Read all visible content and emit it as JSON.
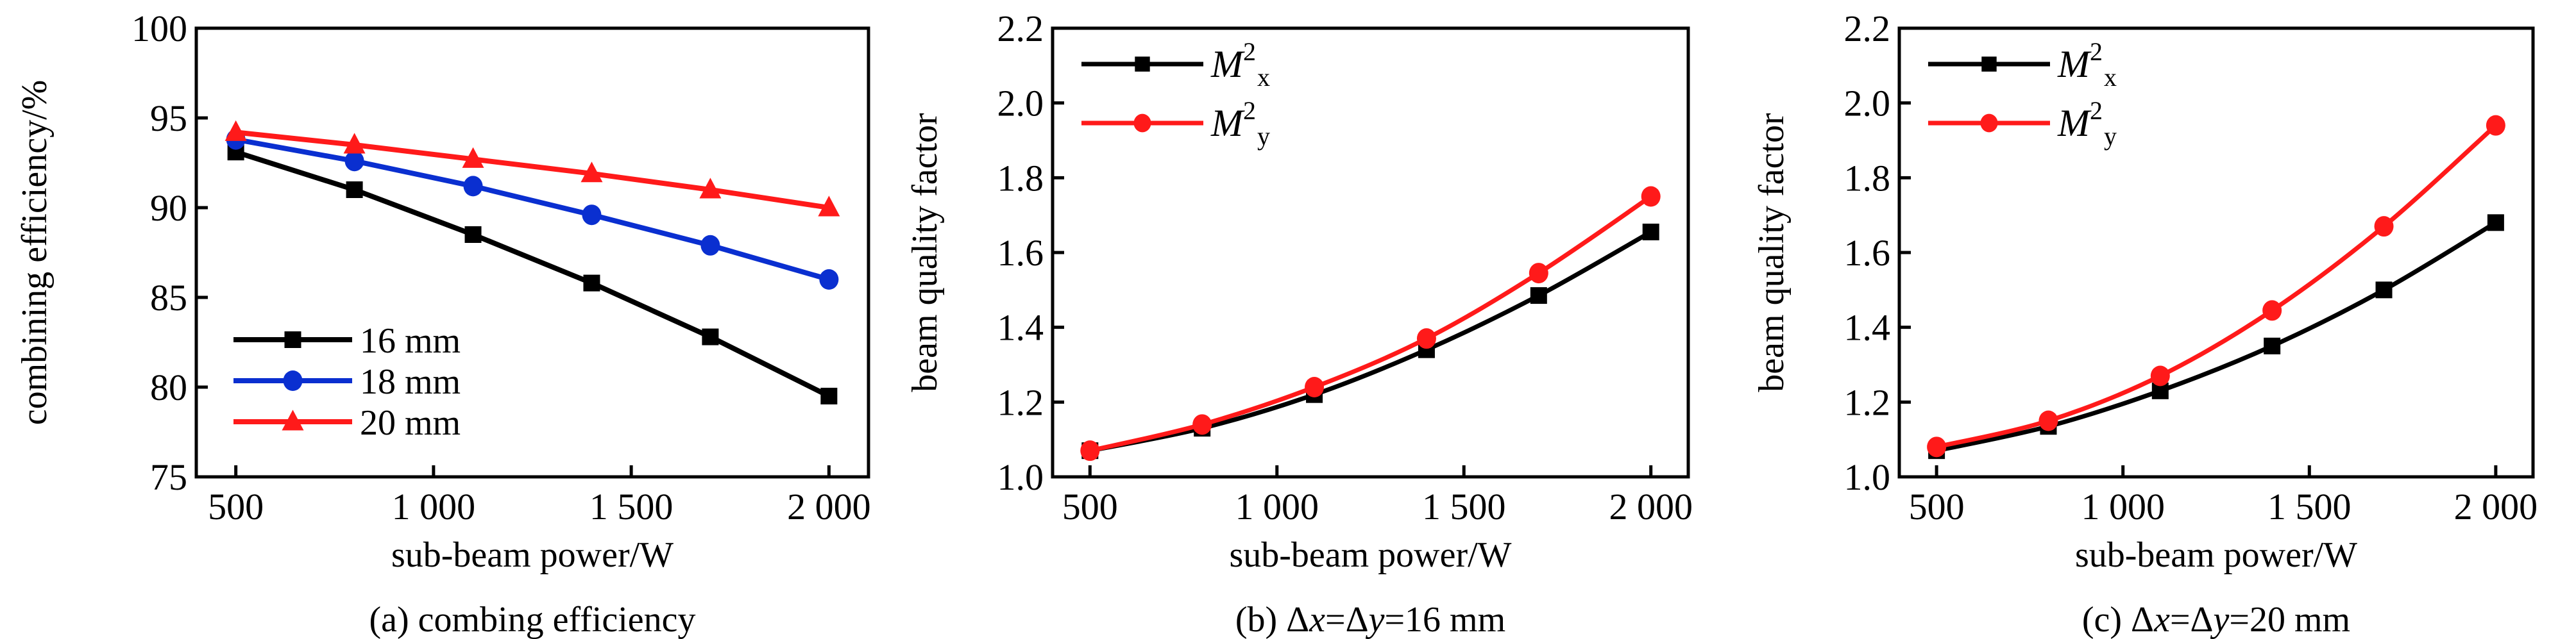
{
  "chart_data": [
    {
      "id": "a",
      "type": "line",
      "title": "",
      "caption": "(a) combing efficiency",
      "xlabel": "sub-beam power/W",
      "ylabel": "combining efficiency/%",
      "x": [
        500,
        800,
        1100,
        1400,
        1700,
        2000
      ],
      "xlim": [
        400,
        2100
      ],
      "ylim": [
        75,
        100
      ],
      "xticks": [
        500,
        1000,
        1500,
        2000
      ],
      "xtick_labels": [
        "500",
        "1 000",
        "1 500",
        "2 000"
      ],
      "yticks": [
        75,
        80,
        85,
        90,
        95,
        100
      ],
      "ytick_labels": [
        "75",
        "80",
        "85",
        "90",
        "95",
        "100"
      ],
      "grid": false,
      "legend_position": "bottom-left",
      "smooth": false,
      "series": [
        {
          "name": "16 mm",
          "color": "#000000",
          "marker": "square",
          "values": [
            93.1,
            91.0,
            88.5,
            85.8,
            82.8,
            79.5
          ]
        },
        {
          "name": "18 mm",
          "color": "#0a2fd0",
          "marker": "circle",
          "values": [
            93.8,
            92.6,
            91.2,
            89.6,
            87.9,
            86.0
          ]
        },
        {
          "name": "20 mm",
          "color": "#ff1a1a",
          "marker": "triangle",
          "values": [
            94.2,
            93.5,
            92.7,
            91.9,
            91.0,
            90.0
          ]
        }
      ]
    },
    {
      "id": "b",
      "type": "line",
      "title": "",
      "caption": "(b) Δx=Δy=16 mm",
      "caption_parts": {
        "prefix": "(b) Δ",
        "var1": "x",
        "mid": "=Δ",
        "var2": "y",
        "suffix": "=16 mm"
      },
      "xlabel": "sub-beam power/W",
      "ylabel": "beam quality factor",
      "x": [
        500,
        800,
        1100,
        1400,
        1700,
        2000
      ],
      "xlim": [
        400,
        2100
      ],
      "ylim": [
        1.0,
        2.2
      ],
      "xticks": [
        500,
        1000,
        1500,
        2000
      ],
      "xtick_labels": [
        "500",
        "1 000",
        "1 500",
        "2 000"
      ],
      "yticks": [
        1.0,
        1.2,
        1.4,
        1.6,
        1.8,
        2.0,
        2.2
      ],
      "ytick_labels": [
        "1.0",
        "1.2",
        "1.4",
        "1.6",
        "1.8",
        "2.0",
        "2.2"
      ],
      "grid": false,
      "legend_position": "top-left",
      "smooth": true,
      "series": [
        {
          "name": "M_x^2",
          "label_main": "M",
          "label_sub": "x",
          "label_sup": "2",
          "color": "#000000",
          "marker": "square",
          "values": [
            1.07,
            1.13,
            1.22,
            1.34,
            1.485,
            1.655
          ]
        },
        {
          "name": "M_y^2",
          "label_main": "M",
          "label_sub": "y",
          "label_sup": "2",
          "color": "#ff1a1a",
          "marker": "circle",
          "values": [
            1.07,
            1.14,
            1.24,
            1.37,
            1.545,
            1.75
          ]
        }
      ]
    },
    {
      "id": "c",
      "type": "line",
      "title": "",
      "caption": "(c) Δx=Δy=20 mm",
      "caption_parts": {
        "prefix": "(c) Δ",
        "var1": "x",
        "mid": "=Δ",
        "var2": "y",
        "suffix": "=20 mm"
      },
      "xlabel": "sub-beam power/W",
      "ylabel": "beam quality factor",
      "x": [
        500,
        800,
        1100,
        1400,
        1700,
        2000
      ],
      "xlim": [
        400,
        2100
      ],
      "ylim": [
        1.0,
        2.2
      ],
      "xticks": [
        500,
        1000,
        1500,
        2000
      ],
      "xtick_labels": [
        "500",
        "1 000",
        "1 500",
        "2 000"
      ],
      "yticks": [
        1.0,
        1.2,
        1.4,
        1.6,
        1.8,
        2.0,
        2.2
      ],
      "ytick_labels": [
        "1.0",
        "1.2",
        "1.4",
        "1.6",
        "1.8",
        "2.0",
        "2.2"
      ],
      "grid": false,
      "legend_position": "top-left",
      "smooth": true,
      "series": [
        {
          "name": "M_x^2",
          "label_main": "M",
          "label_sub": "x",
          "label_sup": "2",
          "color": "#000000",
          "marker": "square",
          "values": [
            1.07,
            1.135,
            1.23,
            1.35,
            1.5,
            1.68
          ]
        },
        {
          "name": "M_y^2",
          "label_main": "M",
          "label_sub": "y",
          "label_sup": "2",
          "color": "#ff1a1a",
          "marker": "circle",
          "values": [
            1.08,
            1.15,
            1.27,
            1.445,
            1.67,
            1.94
          ]
        }
      ]
    }
  ]
}
